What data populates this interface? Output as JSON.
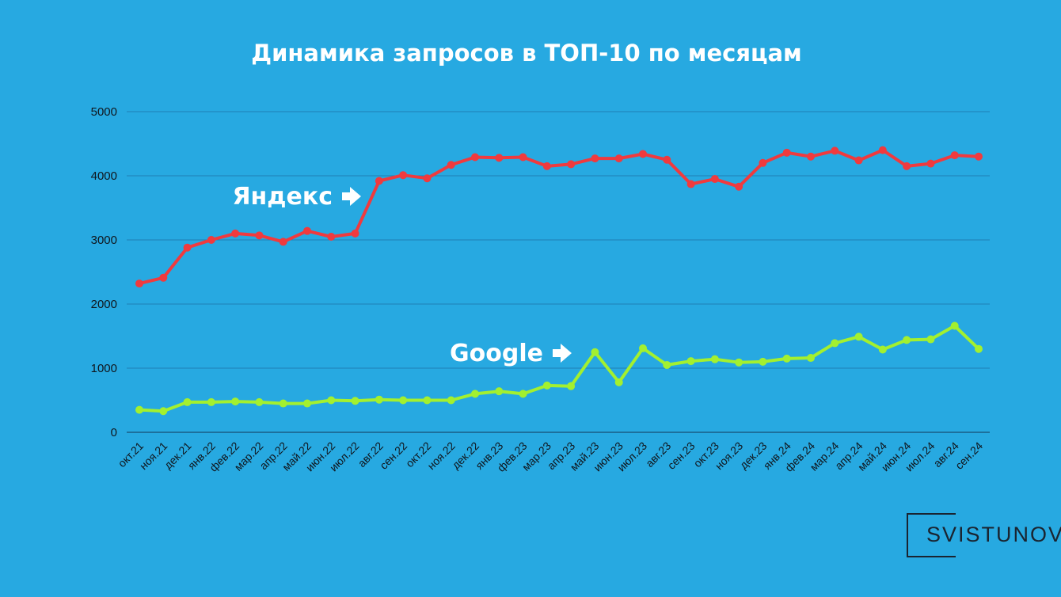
{
  "title": "Динамика запросов в ТОП-10 по месяцам",
  "logo_text": "SVISTUNOV",
  "chart_data": {
    "type": "line",
    "title": "Динамика запросов в ТОП-10 по месяцам",
    "xlabel": "",
    "ylabel": "",
    "ylim": [
      0,
      5000
    ],
    "yticks": [
      0,
      1000,
      2000,
      3000,
      4000,
      5000
    ],
    "grid": true,
    "categories": [
      "окт.21",
      "ноя.21",
      "дек.21",
      "янв.22",
      "фев.22",
      "мар.22",
      "апр.22",
      "май.22",
      "июн.22",
      "июл.22",
      "авг.22",
      "сен.22",
      "окт.22",
      "ноя.22",
      "дек.22",
      "янв.23",
      "фев.23",
      "мар.23",
      "апр.23",
      "май.23",
      "июн.23",
      "июл.23",
      "авг.23",
      "сен.23",
      "окт.23",
      "ноя.23",
      "дек.23",
      "янв.24",
      "фев.24",
      "мар.24",
      "апр.24",
      "май.24",
      "июн.24",
      "июл.24",
      "авг.24",
      "сен.24"
    ],
    "series": [
      {
        "name": "Яндекс",
        "color": "#f03a3e",
        "values": [
          2320,
          2410,
          2880,
          3000,
          3100,
          3070,
          2970,
          3140,
          3050,
          3100,
          3920,
          4010,
          3960,
          4170,
          4290,
          4280,
          4290,
          4150,
          4180,
          4270,
          4270,
          4340,
          4250,
          3870,
          3950,
          3830,
          4200,
          4360,
          4300,
          4390,
          4240,
          4400,
          4150,
          4190,
          4320,
          4300
        ]
      },
      {
        "name": "Google",
        "color": "#a3f02f",
        "values": [
          350,
          330,
          470,
          470,
          480,
          470,
          450,
          450,
          500,
          490,
          510,
          500,
          500,
          500,
          600,
          640,
          600,
          730,
          720,
          1250,
          780,
          1310,
          1050,
          1110,
          1140,
          1090,
          1100,
          1150,
          1160,
          1390,
          1490,
          1290,
          1440,
          1450,
          1660,
          1300
        ]
      }
    ]
  }
}
